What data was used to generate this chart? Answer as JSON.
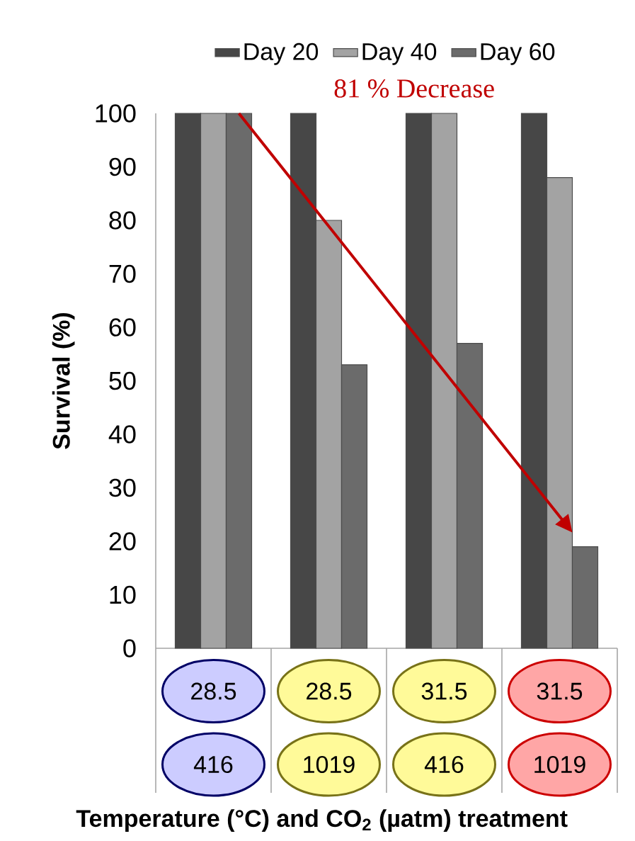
{
  "chart_data": {
    "type": "bar",
    "xlabel": "Temperature (°C) and CO$_{2}$ (µatm) treatment",
    "ylabel": "Survival (%)",
    "categories": [
      "28.5",
      "28.5",
      "31.5",
      "31.5"
    ],
    "series": [
      {
        "name": "Day 20",
        "color": "#474747",
        "values": [
          100,
          100,
          100,
          100
        ]
      },
      {
        "name": "Day 40",
        "color": "#a3a3a3",
        "values": [
          100,
          80,
          100,
          88
        ]
      },
      {
        "name": "Day 60",
        "color": "#6b6b6b",
        "values": [
          100,
          53,
          57,
          19
        ]
      }
    ],
    "ylim": [
      0,
      100
    ],
    "yticks": [
      0,
      10,
      20,
      30,
      40,
      50,
      60,
      70,
      80,
      90,
      100
    ],
    "legend": "top",
    "annotations": [
      "81 % Decrease",
      "416",
      "1019",
      "416",
      "1019"
    ]
  }
}
